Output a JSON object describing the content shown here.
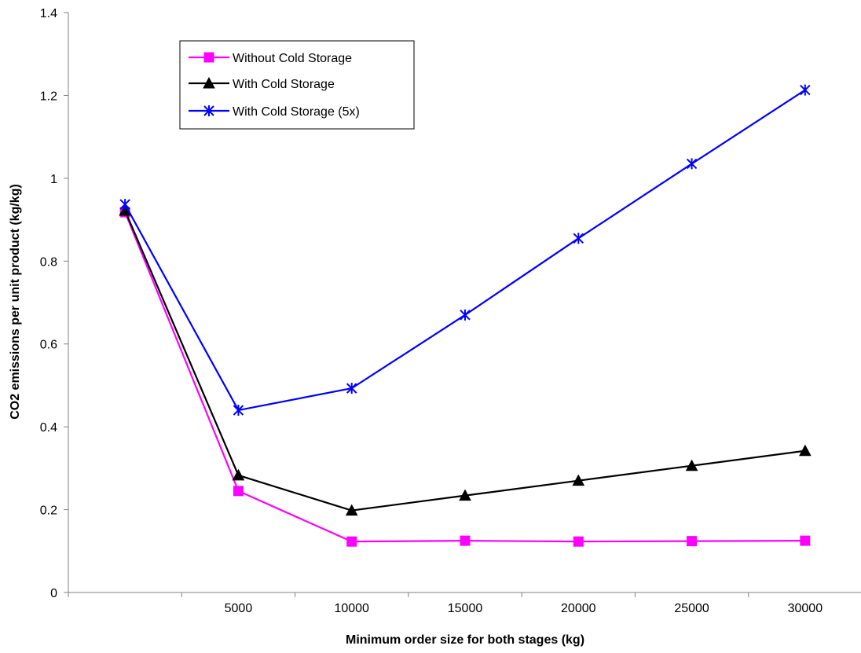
{
  "chart_data": {
    "type": "line",
    "title": "",
    "xlabel": "Minimum order size for both stages (kg)",
    "ylabel": "CO2 emissions per unit product (kg/kg)",
    "categories": [
      "",
      "5000",
      "10000",
      "15000",
      "20000",
      "25000",
      "30000"
    ],
    "ylim": [
      0,
      1.4
    ],
    "yticks": [
      "0",
      "0.2",
      "0.4",
      "0.6",
      "0.8",
      "1",
      "1.2",
      "1.4"
    ],
    "yticks_values": [
      0,
      0.2,
      0.4,
      0.6,
      0.8,
      1.0,
      1.2,
      1.4
    ],
    "grid": false,
    "legend_position": "top-left",
    "series": [
      {
        "name": "Without Cold Storage",
        "color": "#ff00ff",
        "marker": "square",
        "values": [
          0.918,
          0.245,
          0.123,
          0.125,
          0.123,
          0.124,
          0.125
        ]
      },
      {
        "name": "With Cold Storage",
        "color": "#000000",
        "marker": "triangle",
        "values": [
          0.922,
          0.283,
          0.198,
          0.234,
          0.27,
          0.306,
          0.342
        ]
      },
      {
        "name": "With Cold Storage (5x)",
        "color": "#0000ff",
        "marker": "asterisk",
        "values": [
          0.937,
          0.44,
          0.493,
          0.67,
          0.855,
          1.035,
          1.213
        ]
      }
    ]
  }
}
